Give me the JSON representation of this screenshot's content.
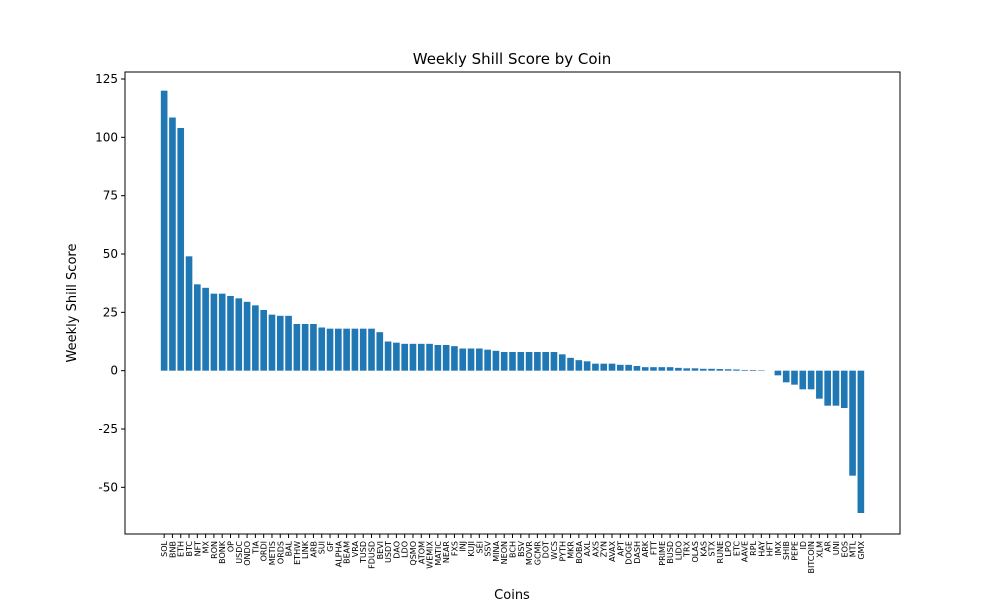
{
  "chart_data": {
    "type": "bar",
    "title": "Weekly Shill Score by Coin",
    "xlabel": "Coins",
    "ylabel": "Weekly Shill Score",
    "ylim": [
      -70,
      128
    ],
    "yticks": [
      -50,
      -25,
      0,
      25,
      50,
      75,
      100,
      125
    ],
    "grid": false,
    "bar_color": "#1f77b4",
    "categories": [
      "SOL",
      "BNB",
      "ETH",
      "BTC",
      "NFT",
      "MX",
      "RON",
      "BONK",
      "OP",
      "USDC",
      "ONDO",
      "TIA",
      "ORDI",
      "METIS",
      "ORDS",
      "BAL",
      "ETHW",
      "LINK",
      "ARB",
      "SUI",
      "GF",
      "ALPHA",
      "BEAM",
      "VRA",
      "TUSD",
      "FDUSD",
      "BEVI",
      "USDT",
      "DAO",
      "LDO",
      "QSMO",
      "ATOM",
      "WEMIX",
      "MATIC",
      "NEAR",
      "FXS",
      "INJ",
      "KUJI",
      "SEI",
      "SSV",
      "MINA",
      "NEON",
      "BCH",
      "BSV",
      "MOVR",
      "GCMR",
      "DOT",
      "WCS",
      "PYTH",
      "MKR",
      "BOBA",
      "AXL",
      "AXS",
      "ZYN",
      "AVAX",
      "APT",
      "DOGE",
      "DASH",
      "ARK",
      "FTT",
      "PRIME",
      "BUSD",
      "LIDO",
      "TRX",
      "OLAS",
      "KAS",
      "STX",
      "RUNE",
      "LPO",
      "ETC",
      "AAVE",
      "RPL",
      "HAY",
      "HFT",
      "IMX",
      "SHIB",
      "PEPE",
      "ID",
      "BITCOIN",
      "XLM",
      "AR",
      "UNI",
      "EOS",
      "MTL",
      "GMX"
    ],
    "values": [
      120,
      108.5,
      104,
      49,
      37,
      35.5,
      33,
      33,
      32,
      31,
      29.5,
      28,
      26,
      24,
      23.5,
      23.5,
      20,
      20,
      20,
      18.5,
      18,
      18,
      18,
      18,
      18,
      18,
      16.5,
      12.5,
      12,
      11.5,
      11.5,
      11.5,
      11.5,
      11,
      11,
      10.5,
      9.5,
      9.5,
      9.5,
      9,
      8.5,
      8,
      8,
      8,
      8,
      8,
      8,
      8,
      7,
      5.5,
      4.5,
      4,
      3,
      3,
      3,
      2.5,
      2.5,
      2,
      1.5,
      1.5,
      1.5,
      1.5,
      1.2,
      1,
      1,
      0.8,
      0.8,
      0.7,
      0.6,
      0.5,
      0.3,
      0.3,
      0.2,
      0,
      -2,
      -5,
      -6,
      -8,
      -8,
      -12,
      -15,
      -15,
      -16,
      -45,
      -61
    ]
  }
}
